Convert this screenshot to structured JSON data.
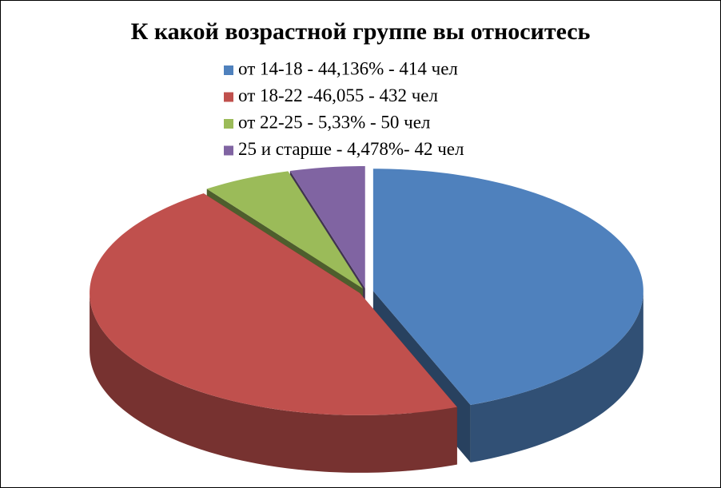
{
  "chart_data": {
    "type": "pie3d",
    "title": "К какой возрастной группе вы относитесь",
    "categories": [
      "от 14-18  - 44,136% - 414 чел",
      "от 18-22 -46,055  - 432 чел",
      "от 22-25  - 5,33% - 50 чел",
      "25 и старше  - 4,478%- 42 чел"
    ],
    "values": [
      44.136,
      46.055,
      5.33,
      4.478
    ],
    "colors": [
      "#4f81bd",
      "#c0504d",
      "#9bbb59",
      "#8064a2"
    ],
    "legend": "top"
  }
}
